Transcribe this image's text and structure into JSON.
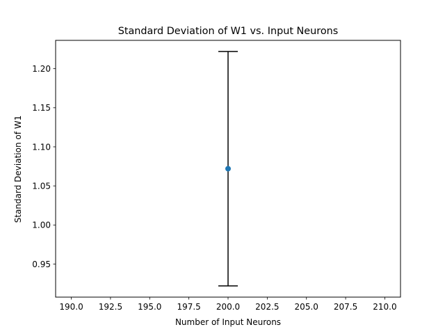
{
  "chart_data": {
    "type": "scatter",
    "title": "Standard Deviation of W1 vs. Input Neurons",
    "xlabel": "Number of Input Neurons",
    "ylabel": "Standard Deviation of W1",
    "xlim": [
      189.0,
      211.0
    ],
    "ylim": [
      0.9077,
      1.2362
    ],
    "x_ticks": [
      190.0,
      192.5,
      195.0,
      197.5,
      200.0,
      202.5,
      205.0,
      207.5,
      210.0
    ],
    "x_tick_labels": [
      "190.0",
      "192.5",
      "195.0",
      "197.5",
      "200.0",
      "202.5",
      "205.0",
      "207.5",
      "210.0"
    ],
    "y_ticks": [
      0.95,
      1.0,
      1.05,
      1.1,
      1.15,
      1.2
    ],
    "y_tick_labels": [
      "0.95",
      "1.00",
      "1.05",
      "1.10",
      "1.15",
      "1.20"
    ],
    "grid": false,
    "points": [
      {
        "x": 200.0,
        "y": 1.072,
        "yerr": 0.15
      }
    ],
    "marker_color": "#1f77b4",
    "errorbar_color": "#000000"
  }
}
